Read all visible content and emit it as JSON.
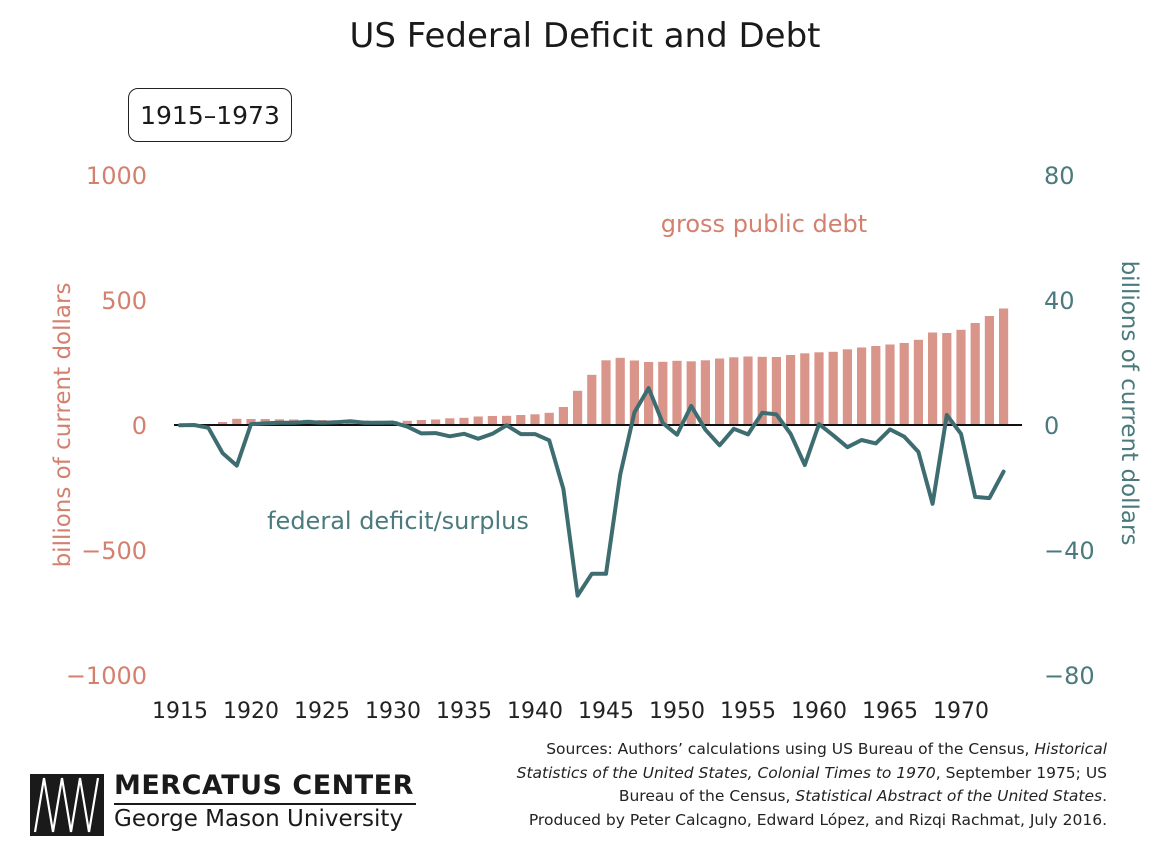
{
  "title": "US Federal Deficit and Debt",
  "period_badge": "1915–1973",
  "colors": {
    "debt": "#d9958a",
    "deficit": "#3e6d71",
    "debt_text": "#d4806f",
    "deficit_text": "#4a7a7d",
    "zero_line": "#111111"
  },
  "chart_data": {
    "type": "bar+line",
    "xticks": [
      1915,
      1920,
      1925,
      1930,
      1935,
      1940,
      1945,
      1950,
      1955,
      1960,
      1965,
      1970
    ],
    "left_axis": {
      "label": "billions of current dollars",
      "ticks": [
        "1000",
        "500",
        "0",
        "−500",
        "−1000"
      ],
      "range": [
        -1000,
        1000
      ]
    },
    "right_axis": {
      "label": "billions of current dollars",
      "ticks": [
        "80",
        "40",
        "0",
        "−40",
        "−80"
      ],
      "range": [
        -80,
        80
      ]
    },
    "series": [
      {
        "name": "gross public debt",
        "type": "bar",
        "axis": "left",
        "x": [
          1915,
          1916,
          1917,
          1918,
          1919,
          1920,
          1921,
          1922,
          1923,
          1924,
          1925,
          1926,
          1927,
          1928,
          1929,
          1930,
          1931,
          1932,
          1933,
          1934,
          1935,
          1936,
          1937,
          1938,
          1939,
          1940,
          1941,
          1942,
          1943,
          1944,
          1945,
          1946,
          1947,
          1948,
          1949,
          1950,
          1951,
          1952,
          1953,
          1954,
          1955,
          1956,
          1957,
          1958,
          1959,
          1960,
          1961,
          1962,
          1963,
          1964,
          1965,
          1966,
          1967,
          1968,
          1969,
          1970,
          1971,
          1972,
          1973
        ],
        "values": [
          1.2,
          1.2,
          3,
          12,
          25,
          24,
          24,
          23,
          22,
          21,
          20,
          19,
          18,
          18,
          17,
          16,
          17,
          20,
          22,
          27,
          29,
          34,
          36,
          37,
          40,
          43,
          49,
          72,
          137,
          201,
          259,
          269,
          258,
          252,
          253,
          257,
          255,
          259,
          266,
          271,
          274,
          273,
          272,
          280,
          287,
          291,
          293,
          303,
          310,
          316,
          322,
          328,
          341,
          370,
          368,
          381,
          408,
          436,
          466
        ]
      },
      {
        "name": "federal deficit/surplus",
        "type": "line",
        "axis": "right",
        "x": [
          1915,
          1916,
          1917,
          1918,
          1919,
          1920,
          1921,
          1922,
          1923,
          1924,
          1925,
          1926,
          1927,
          1928,
          1929,
          1930,
          1931,
          1932,
          1933,
          1934,
          1935,
          1936,
          1937,
          1938,
          1939,
          1940,
          1941,
          1942,
          1943,
          1944,
          1945,
          1946,
          1947,
          1948,
          1949,
          1950,
          1951,
          1952,
          1953,
          1954,
          1955,
          1956,
          1957,
          1958,
          1959,
          1960,
          1961,
          1962,
          1963,
          1964,
          1965,
          1966,
          1967,
          1968,
          1969,
          1970,
          1971,
          1972,
          1973
        ],
        "values": [
          -0.1,
          0,
          -0.9,
          -9,
          -13,
          0.3,
          0.5,
          0.7,
          0.7,
          1,
          0.7,
          0.9,
          1.2,
          0.7,
          0.7,
          0.8,
          -0.5,
          -2.7,
          -2.6,
          -3.6,
          -2.8,
          -4.4,
          -2.8,
          -0.1,
          -2.9,
          -2.9,
          -4.9,
          -20.5,
          -54.6,
          -47.6,
          -47.6,
          -15.9,
          4,
          11.8,
          0.6,
          -3.1,
          6.1,
          -1.5,
          -6.5,
          -1.2,
          -3,
          3.9,
          3.4,
          -2.8,
          -12.8,
          0.3,
          -3.3,
          -7.1,
          -4.8,
          -5.9,
          -1.4,
          -3.7,
          -8.6,
          -25.2,
          3.2,
          -2.8,
          -23,
          -23.4,
          -14.9
        ]
      }
    ]
  },
  "annotations": {
    "debt_label": "gross public debt",
    "deficit_label": "federal deficit/surplus"
  },
  "sources": {
    "line1_pre": "Sources: Authors’ calculations using US Bureau of the Census, ",
    "line1_it": "Historical",
    "line2_it": "Statistics of the United States, Colonial Times to 1970",
    "line2_post": ", September 1975; US",
    "line3_pre": "Bureau of the Census, ",
    "line3_it": "Statistical Abstract of the United States",
    "line3_post": ".",
    "line4": "Produced by Peter Calcagno, Edward López, and Rizqi Rachmat, July 2016."
  },
  "logo": {
    "name": "MERCATUS CENTER",
    "sub": "George Mason University"
  }
}
